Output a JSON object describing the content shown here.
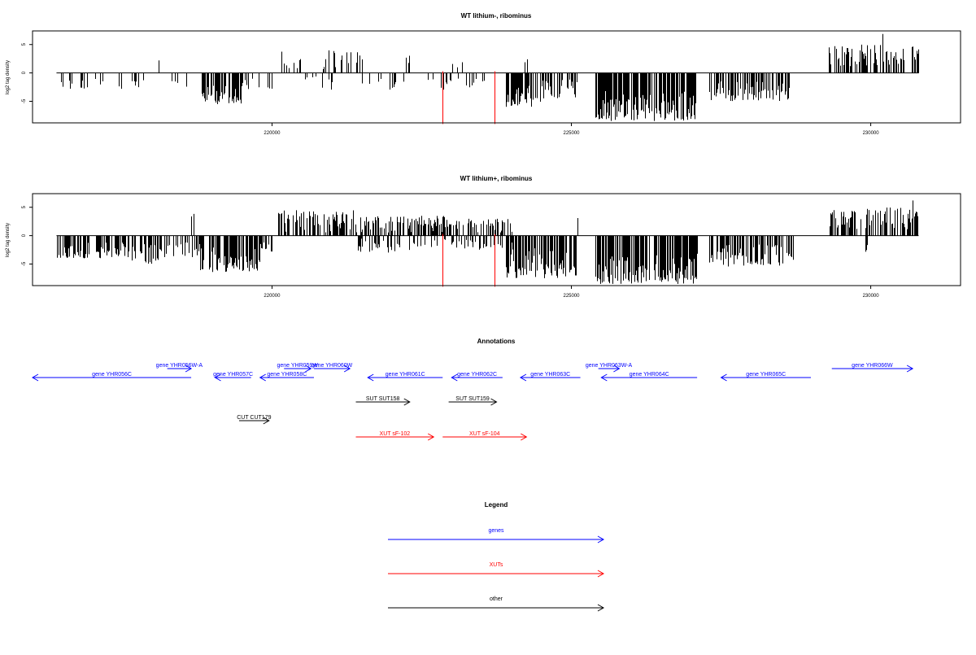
{
  "chart_data": [
    {
      "type": "bar",
      "title": "WT lithium-, ribominus",
      "ylabel": "log2 tag density",
      "xlabel": "",
      "xlim": [
        216000,
        231500
      ],
      "ylim": [
        -8.8,
        7.4
      ],
      "xticks": [
        220000,
        225000,
        230000
      ],
      "yticks": [
        -5,
        0,
        5
      ],
      "grid": false,
      "segments": [
        {
          "start": 216400,
          "end": 217200,
          "sign": -1,
          "min": 1,
          "max": 3,
          "count": 14
        },
        {
          "start": 217400,
          "end": 218000,
          "sign": -1,
          "min": 1,
          "max": 3,
          "count": 8
        },
        {
          "start": 218100,
          "end": 218100,
          "sign": 1,
          "min": 2.2,
          "max": 2.2,
          "count": 1
        },
        {
          "start": 218200,
          "end": 218700,
          "sign": -1,
          "min": 1,
          "max": 3,
          "count": 5
        },
        {
          "start": 218800,
          "end": 219500,
          "sign": -1,
          "min": 2,
          "max": 5.5,
          "count": 60
        },
        {
          "start": 219500,
          "end": 220000,
          "sign": -1,
          "min": 1,
          "max": 3,
          "count": 12
        },
        {
          "start": 220100,
          "end": 220500,
          "sign": 1,
          "min": 0.5,
          "max": 4,
          "count": 12
        },
        {
          "start": 220500,
          "end": 221000,
          "sign": -1,
          "min": 0.5,
          "max": 3,
          "count": 8
        },
        {
          "start": 220700,
          "end": 221500,
          "sign": 1,
          "min": 0.5,
          "max": 4,
          "count": 22
        },
        {
          "start": 221500,
          "end": 222200,
          "sign": -1,
          "min": 1,
          "max": 3,
          "count": 10
        },
        {
          "start": 222200,
          "end": 222400,
          "sign": 1,
          "min": 1,
          "max": 3.5,
          "count": 3
        },
        {
          "start": 222600,
          "end": 223600,
          "sign": -1,
          "min": 1,
          "max": 3,
          "count": 18
        },
        {
          "start": 223000,
          "end": 223200,
          "sign": 1,
          "min": 0.5,
          "max": 2,
          "count": 3
        },
        {
          "start": 223900,
          "end": 224500,
          "sign": -1,
          "min": 2,
          "max": 6,
          "count": 55
        },
        {
          "start": 224500,
          "end": 225100,
          "sign": -1,
          "min": 1,
          "max": 4.5,
          "count": 30
        },
        {
          "start": 224200,
          "end": 224300,
          "sign": 1,
          "min": 1,
          "max": 2.8,
          "count": 2
        },
        {
          "start": 225400,
          "end": 227100,
          "sign": -1,
          "min": 3,
          "max": 8.5,
          "count": 200
        },
        {
          "start": 227300,
          "end": 228700,
          "sign": -1,
          "min": 1.5,
          "max": 5,
          "count": 90
        },
        {
          "start": 229300,
          "end": 230800,
          "sign": 1,
          "min": 1,
          "max": 5,
          "count": 80
        },
        {
          "start": 230200,
          "end": 230300,
          "sign": 1,
          "min": 6.5,
          "max": 7.2,
          "count": 1
        }
      ],
      "highlight_x": [
        222850,
        223720
      ],
      "highlight_value": -9
    },
    {
      "type": "bar",
      "title": "WT lithium+, ribominus",
      "ylabel": "log2 tag density",
      "xlabel": "",
      "xlim": [
        216000,
        231500
      ],
      "ylim": [
        -8.8,
        7.4
      ],
      "xticks": [
        220000,
        225000,
        230000
      ],
      "yticks": [
        -5,
        0,
        5
      ],
      "grid": false,
      "segments": [
        {
          "start": 216400,
          "end": 217600,
          "sign": -1,
          "min": 1,
          "max": 4,
          "count": 80
        },
        {
          "start": 217600,
          "end": 218100,
          "sign": -1,
          "min": 1,
          "max": 5,
          "count": 25
        },
        {
          "start": 218100,
          "end": 218800,
          "sign": -1,
          "min": 1,
          "max": 4,
          "count": 30
        },
        {
          "start": 218800,
          "end": 219800,
          "sign": -1,
          "min": 2,
          "max": 6.5,
          "count": 90
        },
        {
          "start": 218600,
          "end": 218700,
          "sign": 1,
          "min": 3,
          "max": 4,
          "count": 3
        },
        {
          "start": 219800,
          "end": 220000,
          "sign": -1,
          "min": 1,
          "max": 3,
          "count": 10
        },
        {
          "start": 220100,
          "end": 221400,
          "sign": 1,
          "min": 0.5,
          "max": 4.5,
          "count": 90
        },
        {
          "start": 221400,
          "end": 223000,
          "sign": 1,
          "min": 0.5,
          "max": 3.5,
          "count": 110
        },
        {
          "start": 221400,
          "end": 223000,
          "sign": -1,
          "min": 0.5,
          "max": 3,
          "count": 40
        },
        {
          "start": 223000,
          "end": 224000,
          "sign": 1,
          "min": 0.5,
          "max": 3,
          "count": 50
        },
        {
          "start": 223000,
          "end": 224000,
          "sign": -1,
          "min": 0.5,
          "max": 2.5,
          "count": 30
        },
        {
          "start": 223900,
          "end": 225100,
          "sign": -1,
          "min": 2,
          "max": 7.5,
          "count": 110
        },
        {
          "start": 225100,
          "end": 225150,
          "sign": 1,
          "min": 3,
          "max": 3.2,
          "count": 1
        },
        {
          "start": 225400,
          "end": 227100,
          "sign": -1,
          "min": 3,
          "max": 8.5,
          "count": 200
        },
        {
          "start": 227300,
          "end": 228700,
          "sign": -1,
          "min": 1.5,
          "max": 5.5,
          "count": 90
        },
        {
          "start": 229300,
          "end": 230800,
          "sign": 1,
          "min": 1,
          "max": 5,
          "count": 90
        },
        {
          "start": 230700,
          "end": 230750,
          "sign": 1,
          "min": 6,
          "max": 6.4,
          "count": 1
        },
        {
          "start": 229800,
          "end": 230000,
          "sign": -1,
          "min": 1,
          "max": 3,
          "count": 3
        }
      ],
      "highlight_x": [
        222850,
        223720
      ],
      "highlight_value": -9
    }
  ],
  "annotations": {
    "title": "Annotations",
    "xlim": [
      216000,
      231500
    ],
    "features": [
      {
        "label": "gene YHR056C",
        "type": "gene",
        "start": 216000,
        "end": 218650,
        "strand": "-",
        "row": 1
      },
      {
        "label": "gene YHR056W-A",
        "type": "gene",
        "start": 218250,
        "end": 218650,
        "strand": "+",
        "row": 0
      },
      {
        "label": "gene YHR057C",
        "type": "gene",
        "start": 219050,
        "end": 219650,
        "strand": "-",
        "row": 1
      },
      {
        "label": "gene YHR058C",
        "type": "gene",
        "start": 219800,
        "end": 220700,
        "strand": "-",
        "row": 1
      },
      {
        "label": "gene YHR059W",
        "type": "gene",
        "start": 220200,
        "end": 220650,
        "strand": "+",
        "row": 0
      },
      {
        "label": "gene YHR060W",
        "type": "gene",
        "start": 220700,
        "end": 221300,
        "strand": "+",
        "row": 0
      },
      {
        "label": "gene YHR061C",
        "type": "gene",
        "start": 221600,
        "end": 222850,
        "strand": "-",
        "row": 1
      },
      {
        "label": "gene YHR062C",
        "type": "gene",
        "start": 223000,
        "end": 223850,
        "strand": "-",
        "row": 1
      },
      {
        "label": "gene YHR063C",
        "type": "gene",
        "start": 224150,
        "end": 225150,
        "strand": "-",
        "row": 1
      },
      {
        "label": "gene YHR063W-A",
        "type": "gene",
        "start": 225450,
        "end": 225800,
        "strand": "+",
        "row": 0
      },
      {
        "label": "gene YHR064C",
        "type": "gene",
        "start": 225500,
        "end": 227100,
        "strand": "-",
        "row": 1
      },
      {
        "label": "gene YHR065C",
        "type": "gene",
        "start": 227500,
        "end": 229000,
        "strand": "-",
        "row": 1
      },
      {
        "label": "gene YHR066W",
        "type": "gene",
        "start": 229350,
        "end": 230700,
        "strand": "+",
        "row": 0
      },
      {
        "label": "SUT SUT158",
        "type": "other",
        "start": 221400,
        "end": 222300,
        "strand": "+",
        "row": 2
      },
      {
        "label": "SUT SUT159",
        "type": "other",
        "start": 222950,
        "end": 223750,
        "strand": "+",
        "row": 2
      },
      {
        "label": "CUT CUT179",
        "type": "other",
        "start": 219450,
        "end": 219950,
        "strand": "+",
        "row": 3
      },
      {
        "label": "XUT sF-102",
        "type": "xut",
        "start": 221400,
        "end": 222700,
        "strand": "+",
        "row": 4
      },
      {
        "label": "XUT sF-104",
        "type": "xut",
        "start": 222850,
        "end": 224250,
        "strand": "+",
        "row": 4
      }
    ]
  },
  "legend": {
    "title": "Legend",
    "items": [
      {
        "label": "genes",
        "type": "gene"
      },
      {
        "label": "XUTs",
        "type": "xut"
      },
      {
        "label": "other",
        "type": "other"
      }
    ]
  },
  "colors": {
    "gene": "#0000ff",
    "xut": "#ff0000",
    "other": "#000000",
    "bars": "#000000",
    "highlight": "#ff0000"
  }
}
